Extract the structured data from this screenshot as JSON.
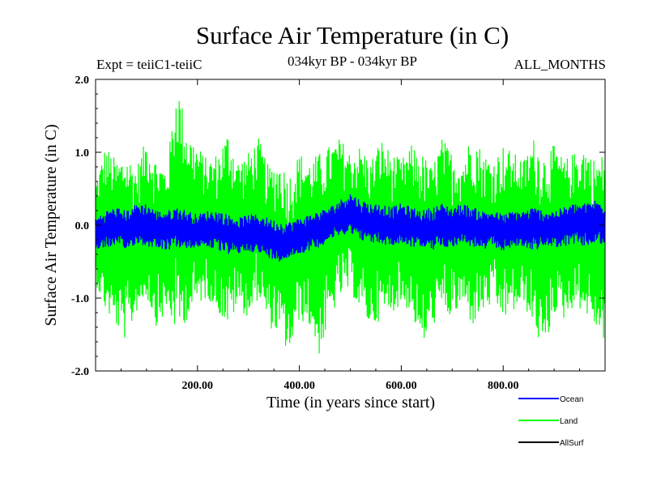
{
  "header": {
    "title": "Surface Air Temperature (in C)",
    "expt": "Expt = teiiC1-teiiC",
    "period": "034kyr BP - 034kyr BP",
    "months": "ALL_MONTHS"
  },
  "chart_data": {
    "type": "line",
    "title": "Surface Air Temperature (in C)",
    "xlabel": "Time (in years since start)",
    "ylabel": "Surface Air Temperature (in C)",
    "xlim": [
      0,
      1000
    ],
    "ylim": [
      -2.0,
      2.0
    ],
    "xticks": [
      200,
      400,
      600,
      800
    ],
    "xtick_labels": [
      "200.00",
      "400.00",
      "600.00",
      "800.00"
    ],
    "yticks": [
      -2.0,
      -1.0,
      0.0,
      1.0,
      2.0
    ],
    "ytick_labels": [
      "-2.0",
      "-1.0",
      "0.0",
      "1.0",
      "2.0"
    ],
    "grid": false,
    "legend_position": "bottom-right",
    "series": [
      {
        "name": "Land",
        "color": "#00ff00",
        "x": [
          0,
          20,
          40,
          60,
          80,
          100,
          120,
          140,
          160,
          180,
          200,
          220,
          240,
          260,
          280,
          300,
          320,
          340,
          360,
          380,
          400,
          420,
          440,
          460,
          480,
          500,
          520,
          540,
          560,
          580,
          600,
          620,
          640,
          660,
          680,
          700,
          720,
          740,
          760,
          780,
          800,
          820,
          840,
          860,
          880,
          900,
          920,
          940,
          960,
          980,
          1000
        ],
        "upper": [
          0.6,
          1.1,
          0.9,
          1.0,
          0.8,
          1.2,
          0.9,
          0.8,
          2.0,
          1.3,
          1.1,
          0.9,
          1.0,
          1.3,
          0.9,
          1.0,
          1.2,
          0.8,
          0.9,
          0.7,
          1.0,
          0.9,
          1.0,
          1.1,
          1.2,
          1.0,
          1.1,
          0.9,
          1.2,
          1.0,
          0.9,
          1.1,
          1.0,
          0.8,
          1.2,
          1.0,
          0.9,
          1.3,
          1.0,
          0.9,
          1.1,
          1.0,
          0.9,
          1.2,
          1.0,
          1.1,
          0.9,
          1.0,
          1.1,
          0.9,
          1.0
        ],
        "lower": [
          -0.8,
          -1.2,
          -1.4,
          -1.6,
          -1.2,
          -1.0,
          -1.4,
          -1.2,
          -1.5,
          -1.3,
          -1.1,
          -1.0,
          -1.2,
          -1.4,
          -1.1,
          -1.3,
          -1.0,
          -1.4,
          -1.5,
          -1.8,
          -1.3,
          -1.4,
          -1.8,
          -1.3,
          -1.0,
          -0.9,
          -1.2,
          -1.4,
          -1.3,
          -1.2,
          -1.1,
          -1.2,
          -1.7,
          -1.4,
          -1.2,
          -1.3,
          -1.1,
          -1.4,
          -1.2,
          -1.1,
          -1.3,
          -1.2,
          -1.1,
          -1.4,
          -1.8,
          -1.2,
          -1.3,
          -1.1,
          -1.2,
          -1.4,
          -1.6
        ]
      },
      {
        "name": "Ocean",
        "color": "#0000ff",
        "x": [
          0,
          20,
          40,
          60,
          80,
          100,
          120,
          140,
          160,
          180,
          200,
          220,
          240,
          260,
          280,
          300,
          320,
          340,
          360,
          380,
          400,
          420,
          440,
          460,
          480,
          500,
          520,
          540,
          560,
          580,
          600,
          620,
          640,
          660,
          680,
          700,
          720,
          740,
          760,
          780,
          800,
          820,
          840,
          860,
          880,
          900,
          920,
          940,
          960,
          980,
          1000
        ],
        "upper": [
          0.1,
          0.2,
          0.25,
          0.2,
          0.3,
          0.3,
          0.2,
          0.2,
          0.25,
          0.2,
          0.15,
          0.2,
          0.2,
          0.15,
          0.1,
          0.15,
          0.15,
          0.1,
          0.05,
          0.05,
          0.1,
          0.15,
          0.2,
          0.25,
          0.35,
          0.45,
          0.35,
          0.3,
          0.3,
          0.25,
          0.3,
          0.25,
          0.2,
          0.25,
          0.3,
          0.25,
          0.3,
          0.25,
          0.2,
          0.2,
          0.15,
          0.2,
          0.2,
          0.25,
          0.2,
          0.2,
          0.25,
          0.3,
          0.3,
          0.35,
          0.3
        ],
        "lower": [
          -0.35,
          -0.3,
          -0.3,
          -0.35,
          -0.25,
          -0.3,
          -0.3,
          -0.35,
          -0.3,
          -0.35,
          -0.3,
          -0.3,
          -0.35,
          -0.4,
          -0.4,
          -0.35,
          -0.4,
          -0.45,
          -0.5,
          -0.45,
          -0.4,
          -0.35,
          -0.3,
          -0.2,
          -0.15,
          -0.1,
          -0.2,
          -0.25,
          -0.25,
          -0.3,
          -0.25,
          -0.3,
          -0.3,
          -0.35,
          -0.3,
          -0.3,
          -0.25,
          -0.3,
          -0.35,
          -0.3,
          -0.35,
          -0.3,
          -0.3,
          -0.35,
          -0.3,
          -0.3,
          -0.3,
          -0.25,
          -0.3,
          -0.25,
          -0.3
        ]
      },
      {
        "name": "AllSurf",
        "color": "#000000",
        "x": [],
        "upper": [],
        "lower": []
      }
    ],
    "legend": [
      {
        "name": "Ocean",
        "color": "#0000ff"
      },
      {
        "name": "Land",
        "color": "#00ff00"
      },
      {
        "name": "AllSurf",
        "color": "#000000"
      }
    ]
  }
}
